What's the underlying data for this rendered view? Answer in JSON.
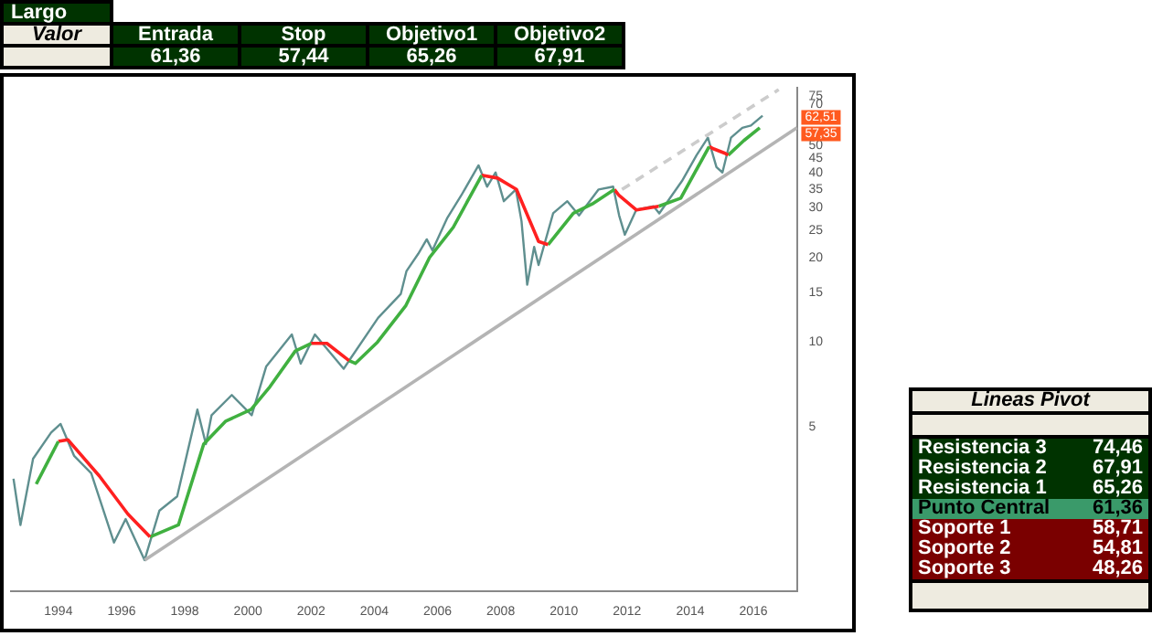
{
  "chart_data": [
    {
      "type": "line",
      "log": "y",
      "grid": false,
      "legend": false,
      "marker": "none",
      "xlim": [
        1992.5,
        2017.4
      ],
      "ylim": [
        1.3,
        80
      ],
      "xticks": [
        1994,
        1996,
        1998,
        2000,
        2002,
        2004,
        2006,
        2008,
        2010,
        2012,
        2014,
        2016
      ],
      "yticks": [
        5,
        10,
        15,
        20,
        25,
        30,
        35,
        40,
        45,
        50,
        70,
        75
      ],
      "annotations": [
        "62,51",
        "57,35"
      ],
      "series": [
        {
          "color": "#5f8f8f",
          "x": [
            1992.58,
            1992.8,
            1993.2,
            1993.77,
            1994.07,
            1994.5,
            1995.04,
            1995.76,
            1996.13,
            1996.73,
            1997.2,
            1997.76,
            1998.4,
            1998.67,
            1998.85,
            1999.49,
            2000.12,
            2000.58,
            2001.39,
            2001.67,
            2002.12,
            2003.03,
            2003.21,
            2004.12,
            2004.84,
            2005.02,
            2005.39,
            2005.66,
            2005.84,
            2006.3,
            2006.75,
            2007.3,
            2007.57,
            2007.84,
            2008.1,
            2008.48,
            2008.66,
            2008.84,
            2009.06,
            2009.2,
            2009.66,
            2010.11,
            2010.48,
            2011.1,
            2011.56,
            2011.75,
            2011.93,
            2012.29,
            2012.84,
            2013.02,
            2013.74,
            2014.2,
            2014.56,
            2014.83,
            2015.02,
            2015.29,
            2015.65,
            2015.92,
            2016.29
          ],
          "values": [
            3.27,
            2.24,
            3.85,
            4.77,
            5.12,
            3.94,
            3.42,
            1.94,
            2.35,
            1.68,
            2.52,
            2.83,
            5.76,
            4.34,
            5.5,
            6.49,
            5.5,
            8.2,
            10.65,
            8.39,
            10.65,
            8.04,
            8.62,
            12.2,
            14.85,
            17.9,
            20.6,
            23.2,
            21.2,
            27.5,
            33.2,
            42.5,
            35.7,
            40.1,
            31.7,
            34.9,
            26.9,
            16.0,
            21.8,
            18.8,
            28.7,
            31.7,
            28.2,
            34.9,
            35.7,
            28.2,
            24.1,
            29.5,
            30.4,
            28.7,
            37.4,
            46.2,
            53.3,
            41.9,
            40.1,
            53.3,
            57.8,
            58.9,
            63.8
          ]
        },
        {
          "color": "#40b040",
          "x": [
            1993.3,
            1994.0
          ],
          "values": [
            3.13,
            4.44
          ]
        },
        {
          "color": "#ff2020",
          "x": [
            1994.0,
            1994.3,
            1995.3,
            1996.2,
            1996.9
          ],
          "values": [
            4.44,
            4.5,
            3.34,
            2.45,
            2.03
          ]
        },
        {
          "color": "#40b040",
          "x": [
            1996.9,
            1997.8,
            1998.6,
            1999.3,
            2000.1,
            2000.7,
            2001.5,
            2002.0
          ],
          "values": [
            2.03,
            2.24,
            4.34,
            5.24,
            5.76,
            6.95,
            9.3,
            9.9
          ]
        },
        {
          "color": "#ff2020",
          "x": [
            2002.0,
            2002.5,
            2003.2
          ],
          "values": [
            9.9,
            9.9,
            8.6
          ]
        },
        {
          "color": "#40b040",
          "x": [
            2003.2,
            2003.4,
            2004.1,
            2005.0,
            2005.75,
            2006.5,
            2007.4
          ],
          "values": [
            8.6,
            8.4,
            10.0,
            13.5,
            20.0,
            25.6,
            39.2
          ]
        },
        {
          "color": "#ff2020",
          "x": [
            2007.4,
            2007.9,
            2008.5,
            2009.2,
            2009.5
          ],
          "values": [
            39.2,
            38.3,
            34.9,
            22.8,
            22.2
          ]
        },
        {
          "color": "#40b040",
          "x": [
            2009.5,
            2010.3,
            2010.9,
            2011.6
          ],
          "values": [
            22.2,
            28.7,
            31.0,
            34.9
          ]
        },
        {
          "color": "#ff2020",
          "x": [
            2011.6,
            2011.75,
            2012.3,
            2013.0
          ],
          "values": [
            34.9,
            33.2,
            29.5,
            30.4
          ]
        },
        {
          "color": "#40b040",
          "x": [
            2013.0,
            2013.7,
            2014.6
          ],
          "values": [
            30.4,
            32.5,
            49.6
          ]
        },
        {
          "color": "#ff2020",
          "x": [
            2014.6,
            2014.75,
            2015.1,
            2015.2
          ],
          "values": [
            49.6,
            48.6,
            46.9,
            46.2
          ]
        },
        {
          "color": "#40b040",
          "x": [
            2015.2,
            2015.7,
            2016.2
          ],
          "values": [
            46.2,
            52.1,
            57.8
          ]
        },
        {
          "color": "#b4b4b4",
          "x": [
            1996.73,
            2017.38
          ],
          "values": [
            1.68,
            57.8
          ]
        },
        {
          "color": "#cccccc",
          "line_style": "dashed",
          "x": [
            2011.84,
            2016.8
          ],
          "values": [
            34.9,
            79
          ]
        }
      ]
    },
    {
      "type": "other",
      "title": "Largo",
      "subtitle": "Valor",
      "categories": [
        "Entrada",
        "Stop",
        "Objetivo1",
        "Objetivo2"
      ],
      "value_labels": [
        "61,36",
        "57,44",
        "65,26",
        "67,91"
      ]
    },
    {
      "type": "other",
      "title": "Lineas Pivot",
      "categories": [
        "Resistencia 3",
        "Resistencia 2",
        "Resistencia 1",
        "Punto Central",
        "Soporte 1",
        "Soporte 2",
        "Soporte 3"
      ],
      "value_labels": [
        "74,46",
        "67,91",
        "65,26",
        "61,36",
        "58,71",
        "54,81",
        "48,26"
      ],
      "colors": [
        "#003300",
        "#003300",
        "#003300",
        "#3a9a6a",
        "#7a0000",
        "#7a0000",
        "#7a0000"
      ]
    }
  ]
}
